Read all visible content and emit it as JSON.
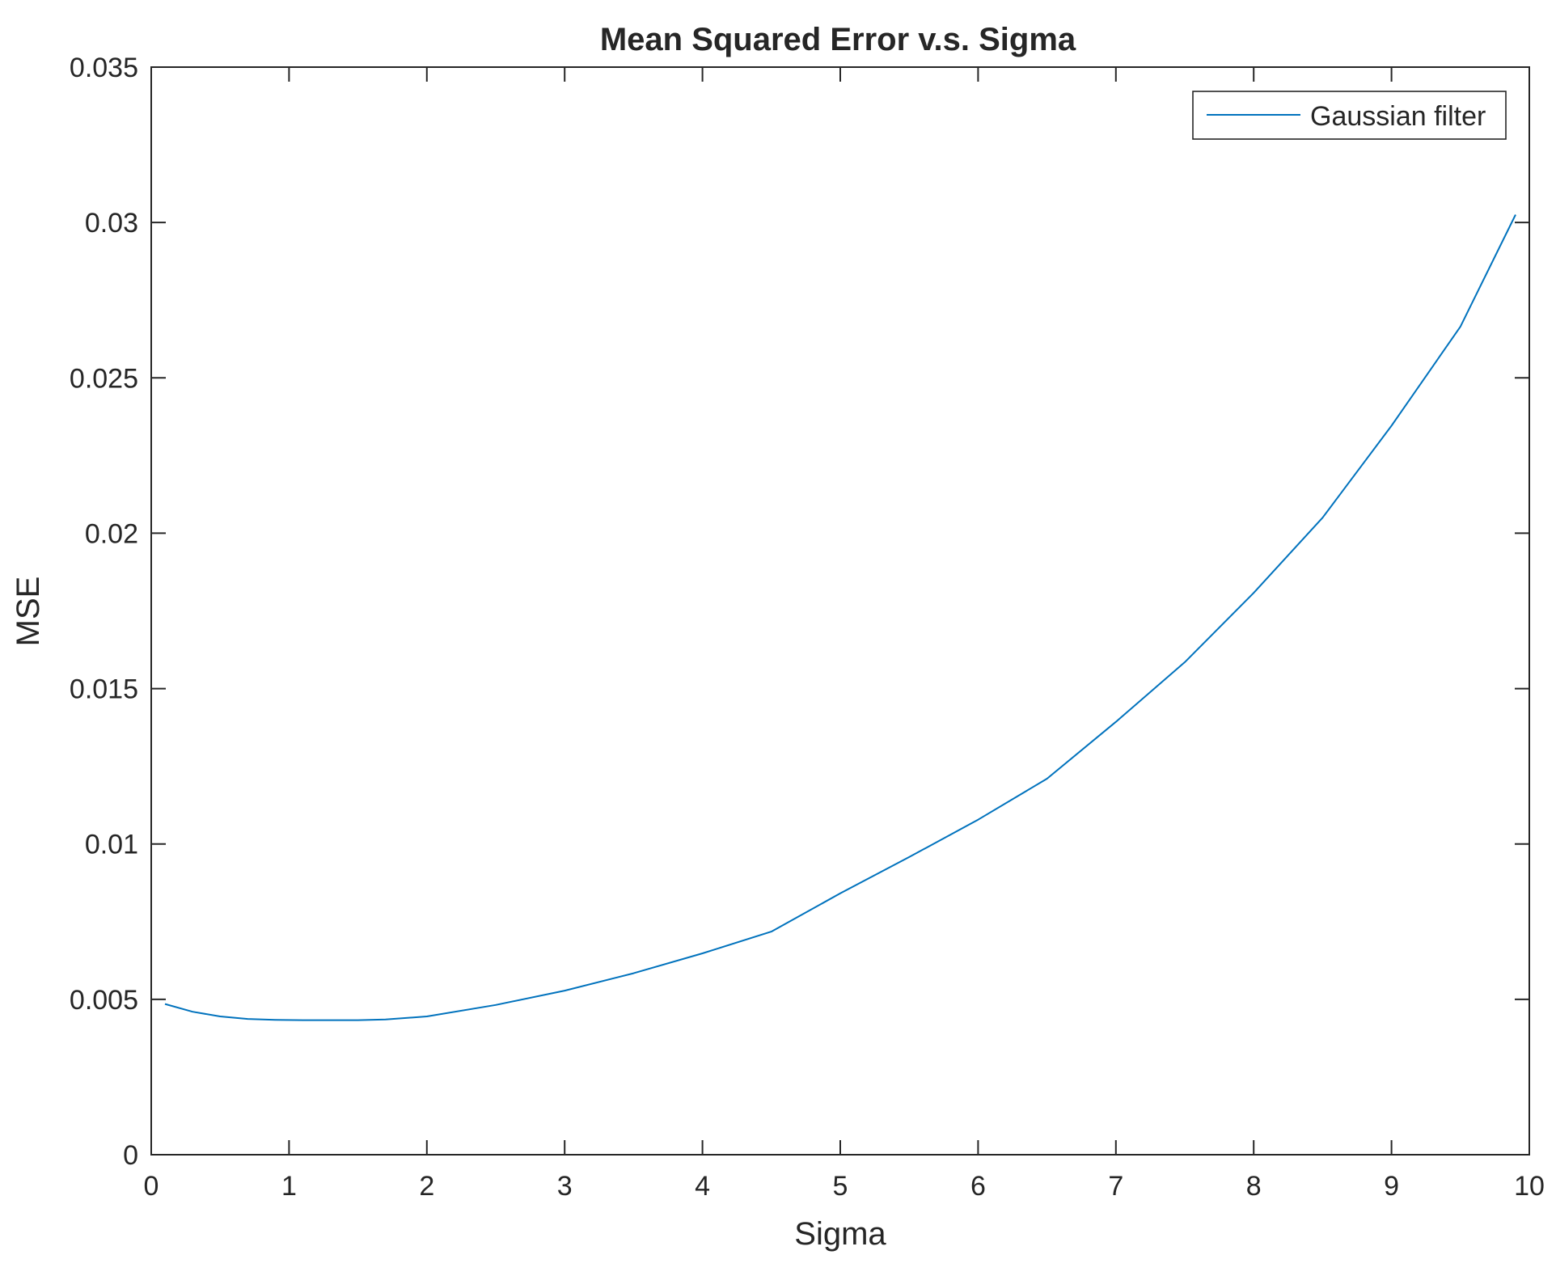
{
  "chart_data": {
    "type": "line",
    "title": "Mean Squared Error v.s. Sigma",
    "xlabel": "Sigma",
    "ylabel": "MSE",
    "xlim": [
      0,
      10
    ],
    "ylim": [
      0,
      0.035
    ],
    "xticks": [
      0,
      1,
      2,
      3,
      4,
      5,
      6,
      7,
      8,
      9,
      10
    ],
    "xtick_labels": [
      "0",
      "1",
      "2",
      "3",
      "4",
      "5",
      "6",
      "7",
      "8",
      "9",
      "10"
    ],
    "yticks": [
      0,
      0.005,
      0.01,
      0.015,
      0.02,
      0.025,
      0.03,
      0.035
    ],
    "ytick_labels": [
      "0",
      "0.005",
      "0.01",
      "0.015",
      "0.02",
      "0.025",
      "0.03",
      "0.035"
    ],
    "grid": false,
    "legend_position": "top-right",
    "series": [
      {
        "name": "Gaussian filter",
        "color": "#0072BD",
        "x": [
          0.1,
          0.3,
          0.5,
          0.7,
          0.9,
          1.1,
          1.3,
          1.5,
          1.7,
          2.0,
          2.5,
          3.0,
          3.5,
          4.0,
          4.5,
          5.0,
          5.5,
          6.0,
          6.5,
          7.0,
          7.5,
          8.0,
          8.5,
          9.0,
          9.5,
          9.9
        ],
        "y": [
          0.00485,
          0.0046,
          0.00445,
          0.00437,
          0.00434,
          0.00433,
          0.00433,
          0.00433,
          0.00435,
          0.00445,
          0.00482,
          0.00528,
          0.00584,
          0.00648,
          0.00718,
          0.00841,
          0.00958,
          0.01078,
          0.0121,
          0.01393,
          0.01585,
          0.01808,
          0.0205,
          0.02346,
          0.02665,
          0.03025
        ]
      }
    ]
  }
}
